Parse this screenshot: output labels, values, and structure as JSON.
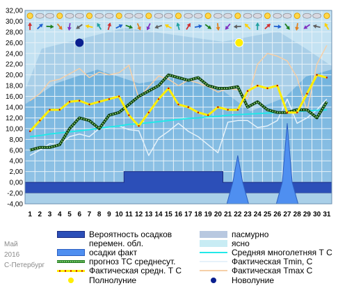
{
  "caption": {
    "month": "Май",
    "year": "2016",
    "city": "С-Петербург"
  },
  "legend": [
    {
      "key": "precip_prob",
      "label": "Вероятность осадков",
      "swatch": "box",
      "color": "#2c4fb8",
      "border": "#1a2a80"
    },
    {
      "key": "overcast",
      "label": "пасмурно",
      "swatch": "box",
      "color": "#b8c8e0",
      "border": "#b8c8e0"
    },
    {
      "key": "variable",
      "label": "перемен. обл.",
      "swatch": "box",
      "color": "#ffffff",
      "border": "#ffffff"
    },
    {
      "key": "clear",
      "label": "ясно",
      "swatch": "box",
      "color": "#c8ecf4",
      "border": "#c8ecf4"
    },
    {
      "key": "precip_fact",
      "label": "осадки факт",
      "swatch": "box",
      "color": "#4f8ff0",
      "border": "#2c5fc0"
    },
    {
      "key": "norm_t",
      "label": "Средняя многолетняя Т С",
      "swatch": "line",
      "color": "#22e8e8"
    },
    {
      "key": "forecast_t",
      "label": "прогноз ТС среднесут.",
      "swatch": "dotted",
      "color": "#1e7a1e"
    },
    {
      "key": "fact_tmin",
      "label": "Фактическая Tmin, C",
      "swatch": "line",
      "color": "#e6f2fa"
    },
    {
      "key": "fact_avg",
      "label": "Фактическая средн. Т С",
      "swatch": "yline",
      "color": "#ffee00"
    },
    {
      "key": "fact_tmax",
      "label": "Фактическая Tmax C",
      "swatch": "line",
      "color": "#f5cfa8"
    },
    {
      "key": "full_moon",
      "label": "Полнолуние",
      "swatch": "dot",
      "color": "#ffee00"
    },
    {
      "key": "new_moon",
      "label": "Новолуние",
      "swatch": "dot",
      "color": "#0a1f8f"
    }
  ],
  "chart_data": {
    "type": "line",
    "title": "",
    "ylim": [
      -4,
      32
    ],
    "yticks": [
      "-4,00",
      "-2,00",
      "0,00",
      "2,00",
      "4,00",
      "6,00",
      "8,00",
      "10,00",
      "12,00",
      "14,00",
      "16,00",
      "18,00",
      "20,00",
      "22,00",
      "24,00",
      "26,00",
      "28,00",
      "30,00",
      "32,00"
    ],
    "x": [
      1,
      2,
      3,
      4,
      5,
      6,
      7,
      8,
      9,
      10,
      11,
      12,
      13,
      14,
      15,
      16,
      17,
      18,
      19,
      20,
      21,
      22,
      23,
      24,
      25,
      26,
      27,
      28,
      29,
      30,
      31
    ],
    "series": [
      {
        "key": "fact_tmax",
        "color": "#f5cfa8",
        "values": [
          15.2,
          16.5,
          18.8,
          19.2,
          20.2,
          21.2,
          19.5,
          20.5,
          20.0,
          20.4,
          21.8,
          15.6,
          17.8,
          19.8,
          19.2,
          18.0,
          19.0,
          18.5,
          17.8,
          16.8,
          17.5,
          17.2,
          15.5,
          22.0,
          24.0,
          23.5,
          22.6,
          19.5,
          13.2,
          22.0,
          25.5
        ]
      },
      {
        "key": "fact_tmin",
        "color": "#e6f2fa",
        "values": [
          5.0,
          6.0,
          7.2,
          7.0,
          8.5,
          9.0,
          8.5,
          10.0,
          10.2,
          10.5,
          9.8,
          9.6,
          5.0,
          8.2,
          9.5,
          11.0,
          9.5,
          8.5,
          7.0,
          5.5,
          11.2,
          11.5,
          11.5,
          10.2,
          10.5,
          11.5,
          15.5,
          11.0,
          12.0,
          13.5,
          15.5
        ]
      },
      {
        "key": "norm_t",
        "color": "#22e8e8",
        "values": [
          8.5,
          8.7,
          9.0,
          9.2,
          9.4,
          9.6,
          9.8,
          10.1,
          10.3,
          10.5,
          10.8,
          10.9,
          11.1,
          11.3,
          11.5,
          11.7,
          11.9,
          12.0,
          12.2,
          12.3,
          12.5,
          12.6,
          12.7,
          12.8,
          12.9,
          13.0,
          13.1,
          13.2,
          13.3,
          13.4,
          13.5
        ]
      },
      {
        "key": "forecast_t",
        "color": "#1e7a1e",
        "values": [
          6.0,
          6.5,
          6.5,
          7.0,
          10.0,
          12.0,
          11.5,
          10.0,
          12.5,
          13.0,
          14.5,
          16.0,
          17.0,
          18.0,
          20.0,
          19.5,
          19.0,
          19.5,
          18.0,
          17.5,
          17.5,
          17.8,
          14.0,
          15.0,
          13.5,
          13.0,
          13.0,
          13.5,
          13.5,
          12.0,
          15.0
        ]
      },
      {
        "key": "fact_avg",
        "color": "#ffee00",
        "values": [
          9.5,
          11.5,
          13.5,
          13.5,
          15.0,
          15.2,
          14.5,
          15.0,
          15.5,
          16.0,
          12.5,
          10.5,
          13.0,
          15.5,
          17.5,
          14.5,
          14.0,
          13.0,
          12.5,
          14.0,
          13.5,
          13.5,
          17.0,
          18.0,
          17.5,
          18.0,
          13.0,
          13.0,
          16.5,
          20.0,
          19.5
        ]
      }
    ],
    "precip_probability": [
      0,
      0,
      0,
      0,
      0,
      0,
      0,
      0,
      0,
      0,
      2,
      2,
      2,
      2,
      2,
      2,
      2,
      2,
      2,
      2,
      0,
      0,
      0,
      0,
      0,
      0,
      0,
      0,
      0,
      0,
      0
    ],
    "precip_fact": [
      0,
      0,
      0,
      0,
      0,
      0,
      0,
      0,
      0,
      0,
      0,
      0,
      0,
      0,
      0,
      0,
      0,
      0,
      0,
      0,
      0,
      5,
      0,
      0,
      0,
      0,
      11,
      0,
      0,
      0,
      0
    ],
    "overcast": [
      0,
      0,
      0,
      0,
      0,
      0,
      0,
      0,
      0,
      0,
      0,
      0,
      0,
      0,
      0,
      0,
      0,
      0,
      1,
      1,
      0,
      0,
      0,
      0,
      1,
      0,
      0,
      0,
      0,
      0,
      0
    ],
    "full_moon_day": 22,
    "new_moon_day": 6
  }
}
